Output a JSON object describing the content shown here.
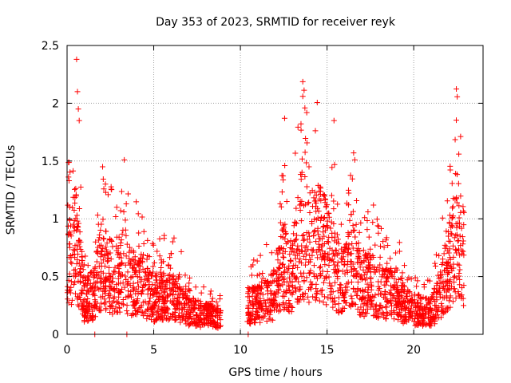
{
  "chart_data": {
    "type": "scatter",
    "title": "Day 353 of 2023, SRMTID for receiver reyk",
    "xlabel": "GPS time / hours",
    "ylabel": "SRMTID / TECUs",
    "xlim": [
      0,
      24
    ],
    "ylim": [
      0,
      2.5
    ],
    "xticks": [
      0,
      5,
      10,
      15,
      20
    ],
    "xtick_labels": [
      "0",
      "5",
      "10",
      "15",
      "20"
    ],
    "yticks": [
      0,
      0.5,
      1,
      1.5,
      2,
      2.5
    ],
    "ytick_labels": [
      "0",
      "0.5",
      "1",
      "1.5",
      "2",
      "2.5"
    ],
    "grid": true,
    "marker": "+",
    "color": "#ff0000",
    "series": [
      {
        "name": "SRMTID",
        "envelope_x": [
          0,
          0.3,
          0.5,
          0.8,
          1.0,
          1.5,
          2.0,
          2.5,
          3.0,
          3.3,
          3.6,
          4.0,
          4.5,
          5.0,
          5.5,
          6.0,
          6.5,
          7.0,
          7.5,
          8.0,
          8.5,
          8.9
        ],
        "envelope_mean_y": [
          0.55,
          0.7,
          0.8,
          0.5,
          0.3,
          0.35,
          0.6,
          0.5,
          0.45,
          0.6,
          0.45,
          0.45,
          0.4,
          0.3,
          0.35,
          0.35,
          0.3,
          0.2,
          0.18,
          0.17,
          0.15,
          0.14
        ],
        "gap_hours": [
          8.9,
          10.4
        ],
        "envelope_x_2": [
          10.4,
          11.0,
          11.5,
          12.0,
          12.5,
          13.0,
          13.5,
          14.0,
          14.5,
          15.0,
          15.5,
          16.0,
          16.5,
          17.0,
          17.5,
          18.0,
          18.5,
          19.0,
          19.5,
          20.0,
          20.5,
          21.0,
          21.5,
          22.0,
          22.5,
          22.9
        ],
        "envelope_mean_y_2": [
          0.25,
          0.25,
          0.3,
          0.35,
          0.6,
          0.5,
          0.9,
          0.75,
          0.8,
          0.7,
          0.55,
          0.45,
          0.7,
          0.4,
          0.45,
          0.4,
          0.35,
          0.35,
          0.25,
          0.2,
          0.2,
          0.18,
          0.35,
          0.55,
          0.85,
          0.7
        ],
        "notable_peaks": [
          {
            "x": 0.55,
            "y": 2.38
          },
          {
            "x": 0.6,
            "y": 2.1
          },
          {
            "x": 0.65,
            "y": 1.95
          },
          {
            "x": 0.7,
            "y": 1.85
          },
          {
            "x": 2.05,
            "y": 1.45
          },
          {
            "x": 3.3,
            "y": 1.51
          },
          {
            "x": 12.55,
            "y": 1.87
          },
          {
            "x": 13.6,
            "y": 2.06
          },
          {
            "x": 15.4,
            "y": 1.85
          },
          {
            "x": 16.6,
            "y": 1.51
          },
          {
            "x": 22.6,
            "y": 1.56
          }
        ],
        "zero_points_x": [
          1.6,
          3.45,
          10.45
        ]
      }
    ]
  }
}
